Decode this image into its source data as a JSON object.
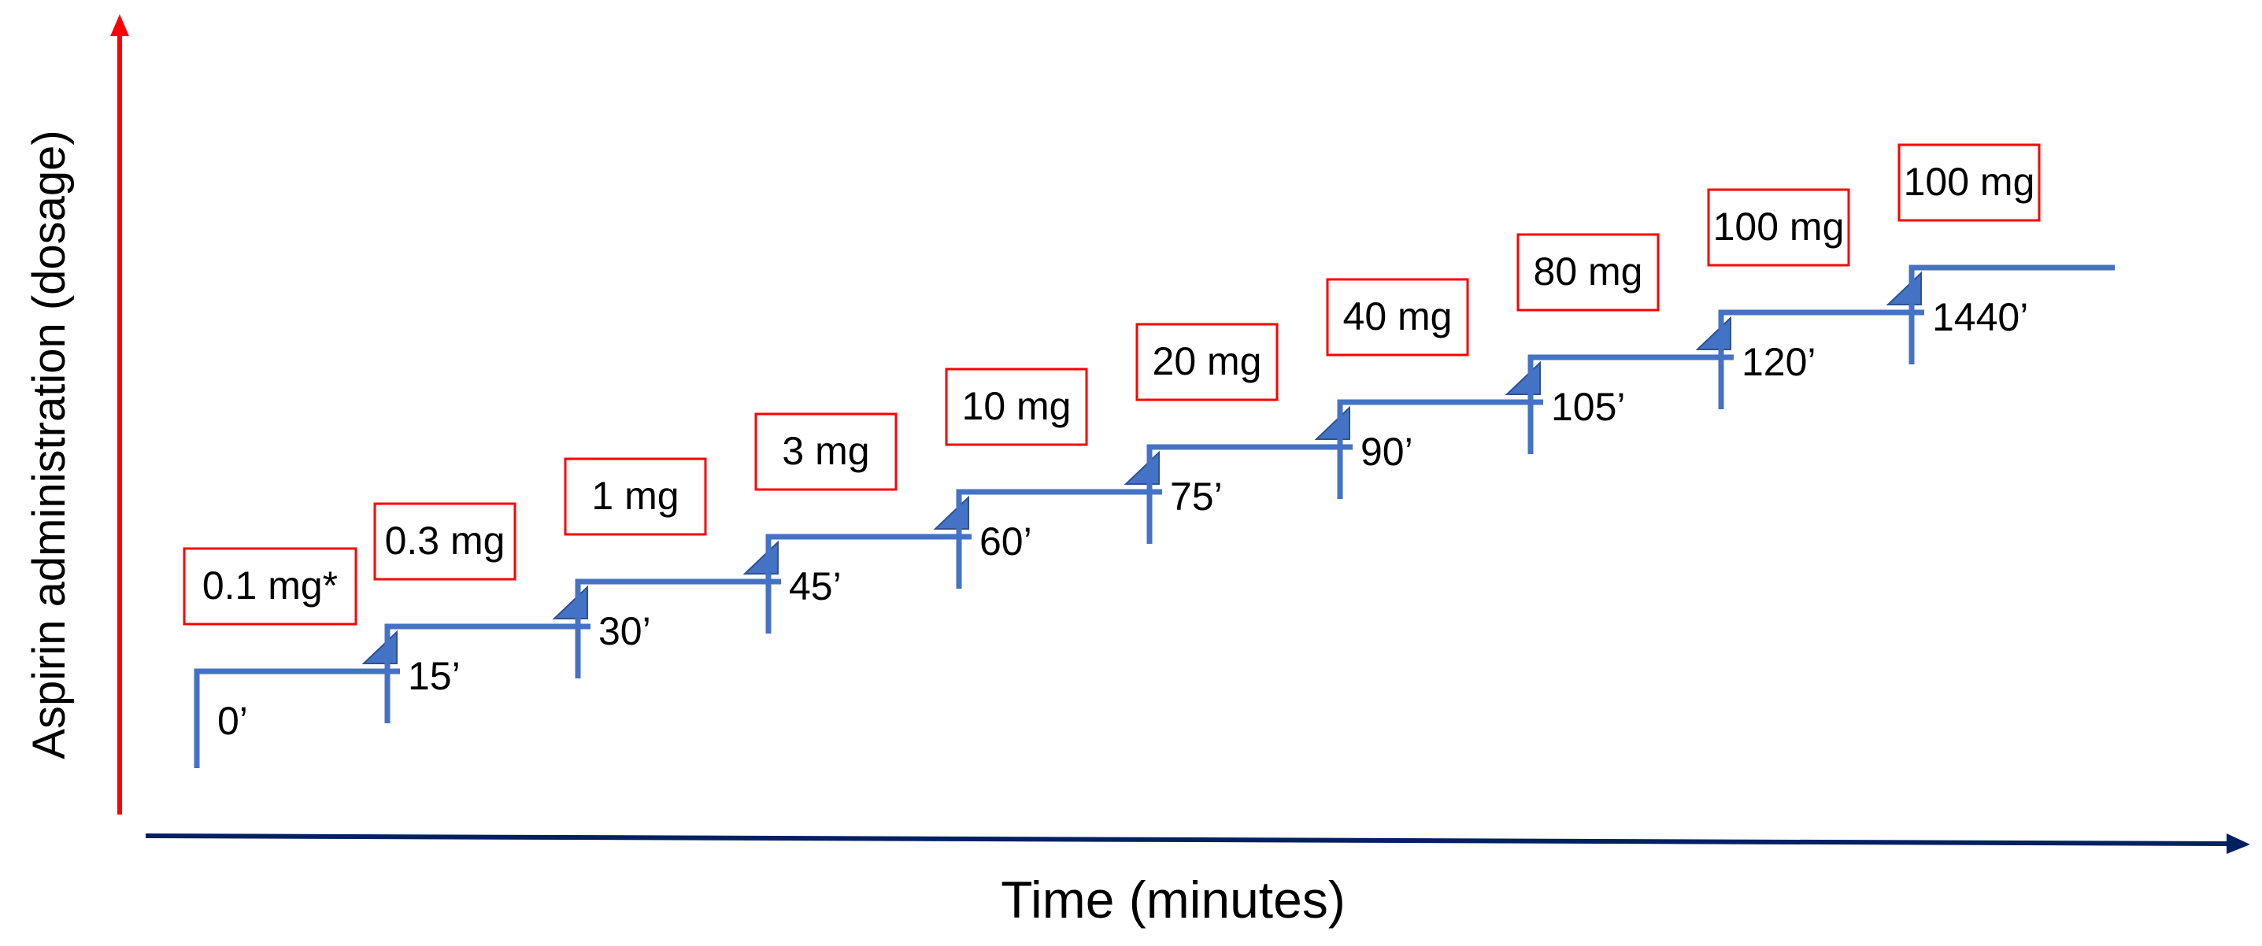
{
  "chart_data": {
    "type": "step",
    "title": "",
    "xlabel": "Time (minutes)",
    "ylabel": "Aspirin administration (dosage)",
    "steps": [
      {
        "time_label": "0’",
        "time_min": 0,
        "dose_label": "0.1 mg*",
        "dose_mg": 0.1
      },
      {
        "time_label": "15’",
        "time_min": 15,
        "dose_label": "0.3 mg",
        "dose_mg": 0.3
      },
      {
        "time_label": "30’",
        "time_min": 30,
        "dose_label": "1 mg",
        "dose_mg": 1
      },
      {
        "time_label": "45’",
        "time_min": 45,
        "dose_label": "3 mg",
        "dose_mg": 3
      },
      {
        "time_label": "60’",
        "time_min": 60,
        "dose_label": "10 mg",
        "dose_mg": 10
      },
      {
        "time_label": "75’",
        "time_min": 75,
        "dose_label": "20 mg",
        "dose_mg": 20
      },
      {
        "time_label": "90’",
        "time_min": 90,
        "dose_label": "40 mg",
        "dose_mg": 40
      },
      {
        "time_label": "105’",
        "time_min": 105,
        "dose_label": "80 mg",
        "dose_mg": 80
      },
      {
        "time_label": "120’",
        "time_min": 120,
        "dose_label": "100 mg",
        "dose_mg": 100
      },
      {
        "time_label": "1440’",
        "time_min": 1440,
        "dose_label": "100 mg",
        "dose_mg": 100
      }
    ]
  },
  "colors": {
    "step_line": "#4472C4",
    "step_arrow": "#4472C4",
    "step_arrow_edge": "#2F528F",
    "label_box_border": "#FF0000",
    "y_axis": "#FF0000",
    "x_axis": "#002060",
    "text": "#000000"
  }
}
